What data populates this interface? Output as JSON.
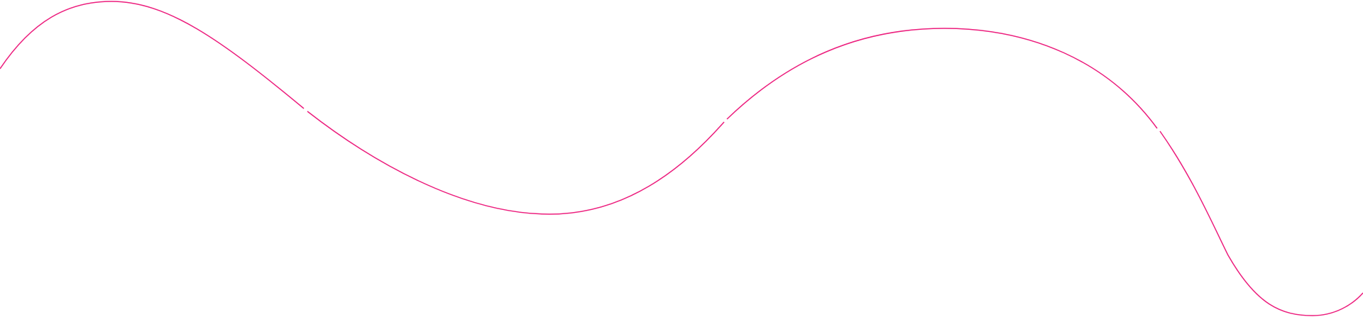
{
  "background_color": "#ffffff",
  "line_color": "#ec1c7c",
  "decoration": "wave-line"
}
